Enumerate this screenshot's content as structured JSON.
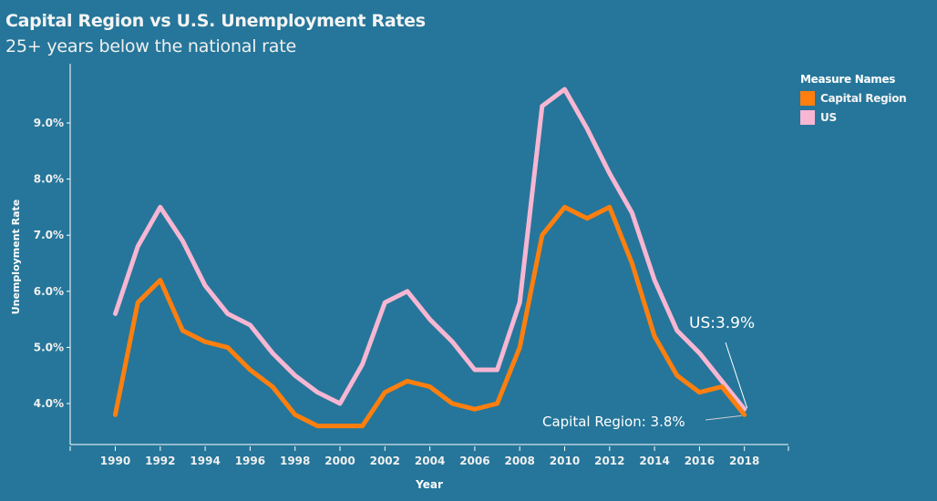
{
  "title": "Capital Region vs U.S. Unemployment Rates",
  "subtitle": "25+ years below the national rate",
  "colors": {
    "background": "#25769a",
    "capital_region": "#ff7f0e",
    "us": "#f7b6d2",
    "axis": "#ffffff"
  },
  "legend": {
    "title": "Measure Names",
    "items": [
      {
        "label": "Capital Region",
        "color": "#ff7f0e"
      },
      {
        "label": "US",
        "color": "#f7b6d2"
      }
    ]
  },
  "annotations": {
    "us": "US:3.9%",
    "capital_region": "Capital Region: 3.8%"
  },
  "chart_data": {
    "type": "line",
    "title": "Capital Region vs U.S. Unemployment Rates",
    "subtitle": "25+ years below the national rate",
    "xlabel": "Year",
    "ylabel": "Unemployment Rate",
    "x": [
      1990,
      1991,
      1992,
      1993,
      1994,
      1995,
      1996,
      1997,
      1998,
      1999,
      2000,
      2001,
      2002,
      2003,
      2004,
      2005,
      2006,
      2007,
      2008,
      2009,
      2010,
      2011,
      2012,
      2013,
      2014,
      2015,
      2016,
      2017,
      2018
    ],
    "x_ticks": [
      "1990",
      "1992",
      "1994",
      "1996",
      "1998",
      "2000",
      "2002",
      "2004",
      "2006",
      "2008",
      "2010",
      "2012",
      "2014",
      "2016",
      "2018"
    ],
    "y_ticks": [
      "4.0%",
      "5.0%",
      "6.0%",
      "7.0%",
      "8.0%",
      "9.0%"
    ],
    "y_tick_values": [
      4.0,
      5.0,
      6.0,
      7.0,
      8.0,
      9.0
    ],
    "xlim": [
      1988,
      2020
    ],
    "ylim": [
      3.3,
      9.9
    ],
    "grid": false,
    "legend_position": "top-right",
    "series": [
      {
        "name": "Capital Region",
        "color": "#ff7f0e",
        "values": [
          3.8,
          5.8,
          6.2,
          5.3,
          5.1,
          5.0,
          4.6,
          4.3,
          3.8,
          3.6,
          3.6,
          3.6,
          4.2,
          4.4,
          4.3,
          4.0,
          3.9,
          4.0,
          5.0,
          7.0,
          7.5,
          7.3,
          7.5,
          6.5,
          5.2,
          4.5,
          4.2,
          4.3,
          3.8
        ]
      },
      {
        "name": "US",
        "color": "#f7b6d2",
        "values": [
          5.6,
          6.8,
          7.5,
          6.9,
          6.1,
          5.6,
          5.4,
          4.9,
          4.5,
          4.2,
          4.0,
          4.7,
          5.8,
          6.0,
          5.5,
          5.1,
          4.6,
          4.6,
          5.8,
          9.3,
          9.6,
          8.9,
          8.1,
          7.4,
          6.2,
          5.3,
          4.9,
          4.4,
          3.9
        ]
      }
    ],
    "annotations": [
      {
        "series": "US",
        "x": 2018,
        "text": "US:3.9%"
      },
      {
        "series": "Capital Region",
        "x": 2018,
        "text": "Capital Region: 3.8%"
      }
    ]
  }
}
